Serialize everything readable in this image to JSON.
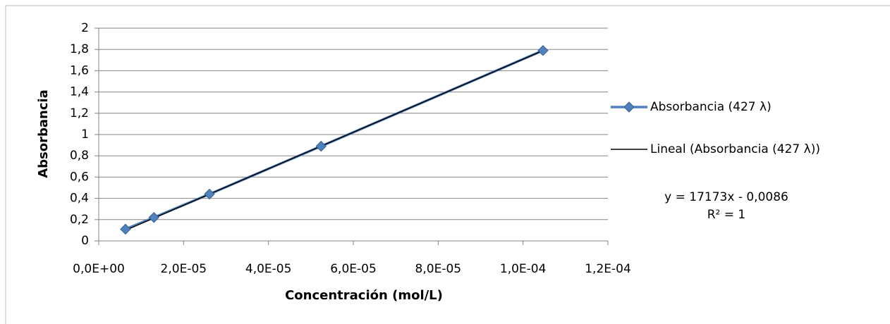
{
  "chart_data": {
    "type": "scatter",
    "x_label": "Concentración (mol/L)",
    "y_label": "Absorbancia",
    "series": [
      {
        "name": "Absorbancia (427 λ)",
        "color": "#4f81bd",
        "x": [
          6.3e-06,
          1.3e-05,
          2.61e-05,
          5.24e-05,
          0.0001047
        ],
        "values": [
          0.11,
          0.22,
          0.44,
          0.89,
          1.79
        ]
      }
    ],
    "trendline": {
      "name": "Lineal (Absorbancia (427 λ))",
      "color": "#000000",
      "slope": 17173,
      "intercept": -0.0086,
      "equation": "y = 17173x - 0,0086",
      "r_squared": "R² = 1"
    },
    "xlim": [
      0,
      0.00012
    ],
    "xticks": [
      {
        "value": 0,
        "label": "0,0E+00"
      },
      {
        "value": 2e-05,
        "label": "2,0E-05"
      },
      {
        "value": 4e-05,
        "label": "4,0E-05"
      },
      {
        "value": 6e-05,
        "label": "6,0E-05"
      },
      {
        "value": 8e-05,
        "label": "8,0E-05"
      },
      {
        "value": 0.0001,
        "label": "1,0E-04"
      },
      {
        "value": 0.00012,
        "label": "1,2E-04"
      }
    ],
    "ylim": [
      0,
      2
    ],
    "yticks": [
      0,
      {
        "value": 0.2,
        "label": "0,2"
      },
      {
        "value": 0.4,
        "label": "0,4"
      },
      {
        "value": 0.6,
        "label": "0,6"
      },
      {
        "value": 0.8,
        "label": "0,8"
      },
      1,
      {
        "value": 1.2,
        "label": "1,2"
      },
      {
        "value": 1.4,
        "label": "1,4"
      },
      {
        "value": 1.6,
        "label": "1,6"
      },
      {
        "value": 1.8,
        "label": "1,8"
      },
      2
    ],
    "grid": true,
    "legend": "right"
  }
}
